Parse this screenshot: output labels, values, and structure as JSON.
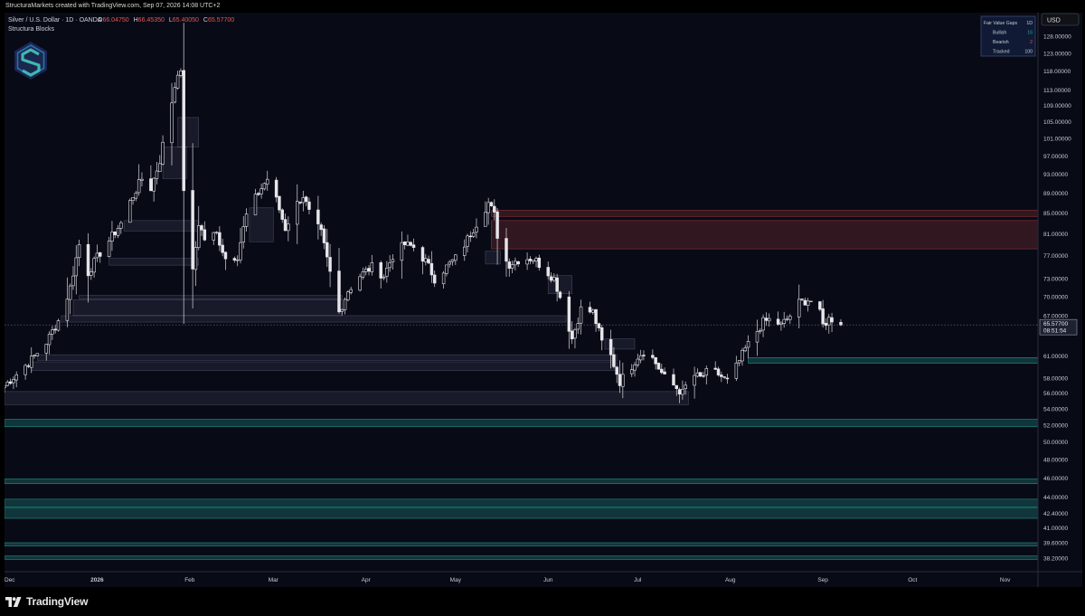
{
  "header": {
    "attribution": "StructuraMarkets created with TradingView.com, Sep 07, 2026 14:08 UTC+2"
  },
  "legend": {
    "symbol": "Silver / U.S. Dollar · 1D · OANDA",
    "open_label": "O",
    "open_value": "66.04750",
    "high_label": "H",
    "high_value": "66.45350",
    "low_label": "L",
    "low_value": "65.40050",
    "close_label": "C",
    "close_value": "65.57700",
    "indicator_name": "Structura Blocks"
  },
  "currency_button": "USD",
  "price_badge": {
    "price": "65.57700",
    "countdown": "08:51:54"
  },
  "fvg_table": {
    "rows": [
      {
        "label": "Fair Value Gaps",
        "value": "1D",
        "color": "#c8ccd4"
      },
      {
        "label": "Bullish",
        "value": "16",
        "color": "#26a69a"
      },
      {
        "label": "Bearish",
        "value": "2",
        "color": "#ef5350"
      },
      {
        "label": "Tracked",
        "value": "100",
        "color": "#c8ccd4"
      }
    ]
  },
  "footer": {
    "brand": "TradingView"
  },
  "colors": {
    "background": "#080a16",
    "candle_body": "#e6e6ea",
    "candle_wick": "#c0c0c8",
    "bearish_zone": "#ef5350",
    "bullish_zone": "#26a69a",
    "neutral_zone": "#8a93b3"
  },
  "chart_data": {
    "type": "candlestick",
    "title": "Silver / U.S. Dollar · 1D · OANDA",
    "y_scale": "log",
    "y_ticks": [
      128,
      123,
      118,
      113,
      109,
      105,
      101,
      97,
      93,
      89,
      85,
      81,
      77,
      73,
      70,
      67,
      61,
      58,
      56,
      54,
      52,
      50,
      48,
      46,
      44,
      42.4,
      41,
      39.6,
      38.2
    ],
    "y_tick_labels": [
      "128.00000",
      "123.00000",
      "118.00000",
      "113.00000",
      "109.00000",
      "105.00000",
      "101.00000",
      "97.00000",
      "93.00000",
      "89.00000",
      "85.00000",
      "81.00000",
      "77.00000",
      "73.00000",
      "70.00000",
      "67.00000",
      "61.00000",
      "58.00000",
      "56.00000",
      "54.00000",
      "52.00000",
      "50.00000",
      "48.00000",
      "46.00000",
      "44.00000",
      "42.40000",
      "41.00000",
      "39.60000",
      "38.20000"
    ],
    "x_ticks": [
      {
        "label": "Dec",
        "date": "2025-12-01"
      },
      {
        "label": "2026",
        "date": "2026-01-01"
      },
      {
        "label": "Feb",
        "date": "2026-02-01"
      },
      {
        "label": "Mar",
        "date": "2026-03-01"
      },
      {
        "label": "Apr",
        "date": "2026-04-01"
      },
      {
        "label": "May",
        "date": "2026-05-01"
      },
      {
        "label": "Jun",
        "date": "2026-06-01"
      },
      {
        "label": "Jul",
        "date": "2026-07-01"
      },
      {
        "label": "Aug",
        "date": "2026-08-01"
      },
      {
        "label": "Sep",
        "date": "2026-09-01"
      },
      {
        "label": "Oct",
        "date": "2026-10-01"
      },
      {
        "label": "Nov",
        "date": "2026-11-01"
      }
    ],
    "x_range": [
      "2025-12-01",
      "2026-11-12"
    ],
    "y_range": [
      37.5,
      134
    ],
    "last_price": 65.577,
    "anchors": [
      [
        "2025-12-01",
        57.0
      ],
      [
        "2025-12-05",
        58.5
      ],
      [
        "2025-12-10",
        60.5
      ],
      [
        "2025-12-15",
        63.0
      ],
      [
        "2025-12-20",
        67.0
      ],
      [
        "2025-12-23",
        71.5
      ],
      [
        "2025-12-26",
        79.0
      ],
      [
        "2025-12-29",
        74.0
      ],
      [
        "2026-01-02",
        77.5
      ],
      [
        "2026-01-06",
        80.5
      ],
      [
        "2026-01-09",
        83.0
      ],
      [
        "2026-01-13",
        88.5
      ],
      [
        "2026-01-16",
        92.0
      ],
      [
        "2026-01-19",
        90.0
      ],
      [
        "2026-01-22",
        96.0
      ],
      [
        "2026-01-26",
        110.0
      ],
      [
        "2026-01-28",
        118.0
      ],
      [
        "2026-01-29",
        117.0
      ],
      [
        "2026-01-30",
        90.0
      ],
      [
        "2026-02-02",
        74.0
      ],
      [
        "2026-02-04",
        83.0
      ],
      [
        "2026-02-06",
        80.0
      ],
      [
        "2026-02-10",
        81.0
      ],
      [
        "2026-02-13",
        76.5
      ],
      [
        "2026-02-17",
        77.0
      ],
      [
        "2026-02-20",
        84.5
      ],
      [
        "2026-02-24",
        89.0
      ],
      [
        "2026-02-27",
        92.0
      ],
      [
        "2026-03-02",
        87.5
      ],
      [
        "2026-03-05",
        82.0
      ],
      [
        "2026-03-08",
        86.0
      ],
      [
        "2026-03-11",
        88.5
      ],
      [
        "2026-03-13",
        85.0
      ],
      [
        "2026-03-17",
        81.0
      ],
      [
        "2026-03-20",
        74.0
      ],
      [
        "2026-03-23",
        67.5
      ],
      [
        "2026-03-26",
        71.0
      ],
      [
        "2026-03-30",
        73.5
      ],
      [
        "2026-04-03",
        75.0
      ],
      [
        "2026-04-07",
        73.5
      ],
      [
        "2026-04-10",
        77.0
      ],
      [
        "2026-04-14",
        79.0
      ],
      [
        "2026-04-17",
        78.5
      ],
      [
        "2026-04-21",
        76.0
      ],
      [
        "2026-04-24",
        73.0
      ],
      [
        "2026-04-28",
        75.0
      ],
      [
        "2026-05-02",
        77.0
      ],
      [
        "2026-05-06",
        81.0
      ],
      [
        "2026-05-09",
        84.0
      ],
      [
        "2026-05-12",
        87.0
      ],
      [
        "2026-05-14",
        84.5
      ],
      [
        "2026-05-16",
        77.0
      ],
      [
        "2026-05-19",
        75.5
      ],
      [
        "2026-05-23",
        76.5
      ],
      [
        "2026-05-27",
        76.5
      ],
      [
        "2026-05-31",
        74.5
      ],
      [
        "2026-06-03",
        73.0
      ],
      [
        "2026-06-06",
        68.5
      ],
      [
        "2026-06-09",
        63.5
      ],
      [
        "2026-06-12",
        68.0
      ],
      [
        "2026-06-16",
        67.5
      ],
      [
        "2026-06-19",
        63.0
      ],
      [
        "2026-06-22",
        61.0
      ],
      [
        "2026-06-25",
        57.5
      ],
      [
        "2026-06-28",
        59.0
      ],
      [
        "2026-07-01",
        61.0
      ],
      [
        "2026-07-04",
        62.0
      ],
      [
        "2026-07-07",
        60.0
      ],
      [
        "2026-07-10",
        58.0
      ],
      [
        "2026-07-13",
        57.0
      ],
      [
        "2026-07-16",
        56.0
      ],
      [
        "2026-07-19",
        58.5
      ],
      [
        "2026-07-22",
        58.0
      ],
      [
        "2026-07-25",
        59.0
      ],
      [
        "2026-07-28",
        58.5
      ],
      [
        "2026-07-31",
        57.5
      ],
      [
        "2026-08-03",
        59.5
      ],
      [
        "2026-08-06",
        62.0
      ],
      [
        "2026-08-09",
        64.0
      ],
      [
        "2026-08-12",
        66.0
      ],
      [
        "2026-08-15",
        66.5
      ],
      [
        "2026-08-18",
        65.5
      ],
      [
        "2026-08-21",
        67.0
      ],
      [
        "2026-08-24",
        69.0
      ],
      [
        "2026-08-27",
        69.5
      ],
      [
        "2026-08-30",
        69.0
      ],
      [
        "2026-09-01",
        65.5
      ],
      [
        "2026-09-03",
        66.5
      ],
      [
        "2026-09-05",
        66.5
      ],
      [
        "2026-09-07",
        65.577
      ]
    ],
    "zones": [
      {
        "kind": "bearish",
        "start": "2026-05-13",
        "low": 84.3,
        "high": 85.5
      },
      {
        "kind": "bearish",
        "start": "2026-05-13",
        "low": 78.2,
        "high": 83.5
      },
      {
        "kind": "bullish",
        "start": "2026-08-07",
        "low": 60.0,
        "high": 60.8
      },
      {
        "kind": "bullish",
        "start": "2025-12-01",
        "low": 51.8,
        "high": 52.7
      },
      {
        "kind": "bullish",
        "start": "2025-12-01",
        "low": 45.4,
        "high": 45.9
      },
      {
        "kind": "bullish",
        "start": "2025-12-01",
        "low": 43.0,
        "high": 43.8
      },
      {
        "kind": "bullish",
        "start": "2025-12-01",
        "low": 41.9,
        "high": 42.9
      },
      {
        "kind": "bullish",
        "start": "2025-12-01",
        "low": 39.3,
        "high": 39.6
      },
      {
        "kind": "bullish",
        "start": "2025-12-01",
        "low": 38.1,
        "high": 38.4
      },
      {
        "kind": "neutral",
        "start": "2025-12-01",
        "end": "2026-07-18",
        "low": 54.5,
        "high": 56.2
      },
      {
        "kind": "neutral",
        "start": "2025-12-10",
        "end": "2026-06-24",
        "low": 59.0,
        "high": 60.2
      },
      {
        "kind": "neutral",
        "start": "2025-12-12",
        "end": "2026-06-24",
        "low": 60.4,
        "high": 61.2
      },
      {
        "kind": "neutral",
        "start": "2025-12-20",
        "end": "2026-06-07",
        "low": 66.0,
        "high": 67.0
      },
      {
        "kind": "neutral",
        "start": "2025-12-24",
        "end": "2026-03-24",
        "low": 67.0,
        "high": 69.5
      },
      {
        "kind": "neutral",
        "start": "2025-12-26",
        "end": "2026-03-24",
        "low": 69.6,
        "high": 70.2
      },
      {
        "kind": "neutral",
        "start": "2026-01-05",
        "end": "2026-02-04",
        "low": 75.3,
        "high": 76.5
      },
      {
        "kind": "neutral",
        "start": "2026-01-10",
        "end": "2026-02-04",
        "low": 81.5,
        "high": 83.5
      },
      {
        "kind": "neutral",
        "start": "2026-01-23",
        "end": "2026-01-31",
        "low": 92.0,
        "high": 99.0
      },
      {
        "kind": "neutral",
        "start": "2026-01-28",
        "end": "2026-02-04",
        "low": 99.0,
        "high": 106.0
      },
      {
        "kind": "neutral",
        "start": "2026-02-21",
        "end": "2026-03-01",
        "low": 79.5,
        "high": 86.0
      },
      {
        "kind": "neutral",
        "start": "2026-05-11",
        "end": "2026-05-16",
        "low": 75.5,
        "high": 77.8
      },
      {
        "kind": "neutral",
        "start": "2026-06-01",
        "end": "2026-06-09",
        "low": 70.5,
        "high": 73.5
      },
      {
        "kind": "neutral",
        "start": "2026-06-20",
        "end": "2026-06-30",
        "low": 62.0,
        "high": 63.5
      }
    ]
  }
}
